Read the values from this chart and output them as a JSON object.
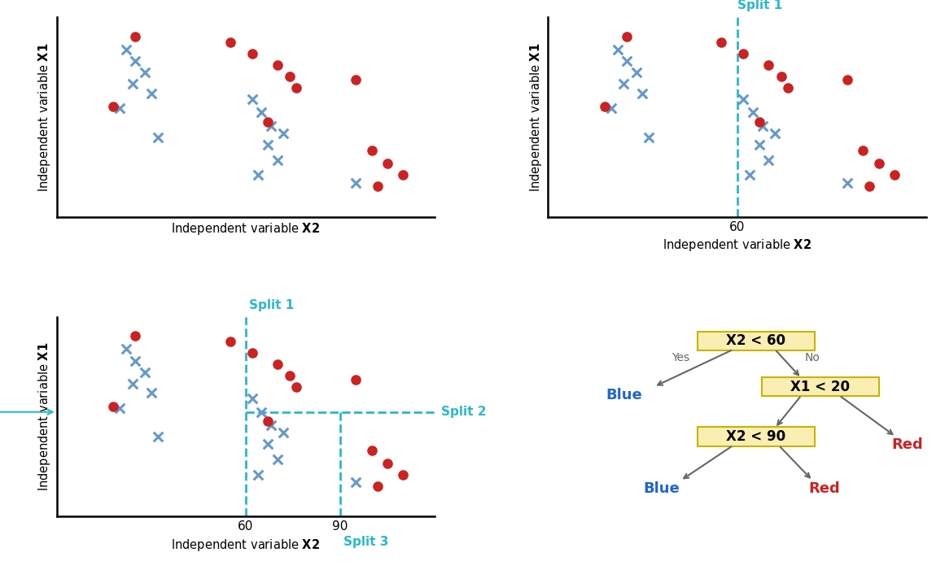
{
  "blue_x": [
    22,
    25,
    28,
    24,
    30,
    20,
    32,
    62,
    65,
    68,
    72,
    67,
    70,
    64,
    95
  ],
  "blue_y": [
    88,
    82,
    76,
    70,
    65,
    57,
    42,
    62,
    55,
    48,
    44,
    38,
    30,
    22,
    18
  ],
  "red_x": [
    25,
    55,
    62,
    70,
    74,
    76,
    18,
    67,
    95,
    100,
    105,
    110,
    102
  ],
  "red_y": [
    95,
    92,
    86,
    80,
    74,
    68,
    58,
    50,
    72,
    35,
    28,
    22,
    16
  ],
  "x_split1": 60,
  "x_split3": 90,
  "y_split2": 55,
  "xlim": [
    0,
    120
  ],
  "ylim": [
    0,
    105
  ],
  "xlabel": "Independent variable ",
  "xlabel_bold": "X2",
  "ylabel": "Independent variable ",
  "ylabel_bold": "X1",
  "split1_label": "Split 1",
  "split2_label": "Split 2",
  "split3_label": "Split 3",
  "split_color": "#29b8cc",
  "blue_color": "#6699cc",
  "red_color": "#cc2222",
  "y90_label": "90",
  "x60_label": "60",
  "x90_label": "90",
  "tree_box_color": "#faeeb3",
  "tree_box_edge": "#c8b400",
  "tree_arrow_color": "#666666",
  "tree_blue_color": "#2266cc",
  "tree_red_color": "#cc2222"
}
